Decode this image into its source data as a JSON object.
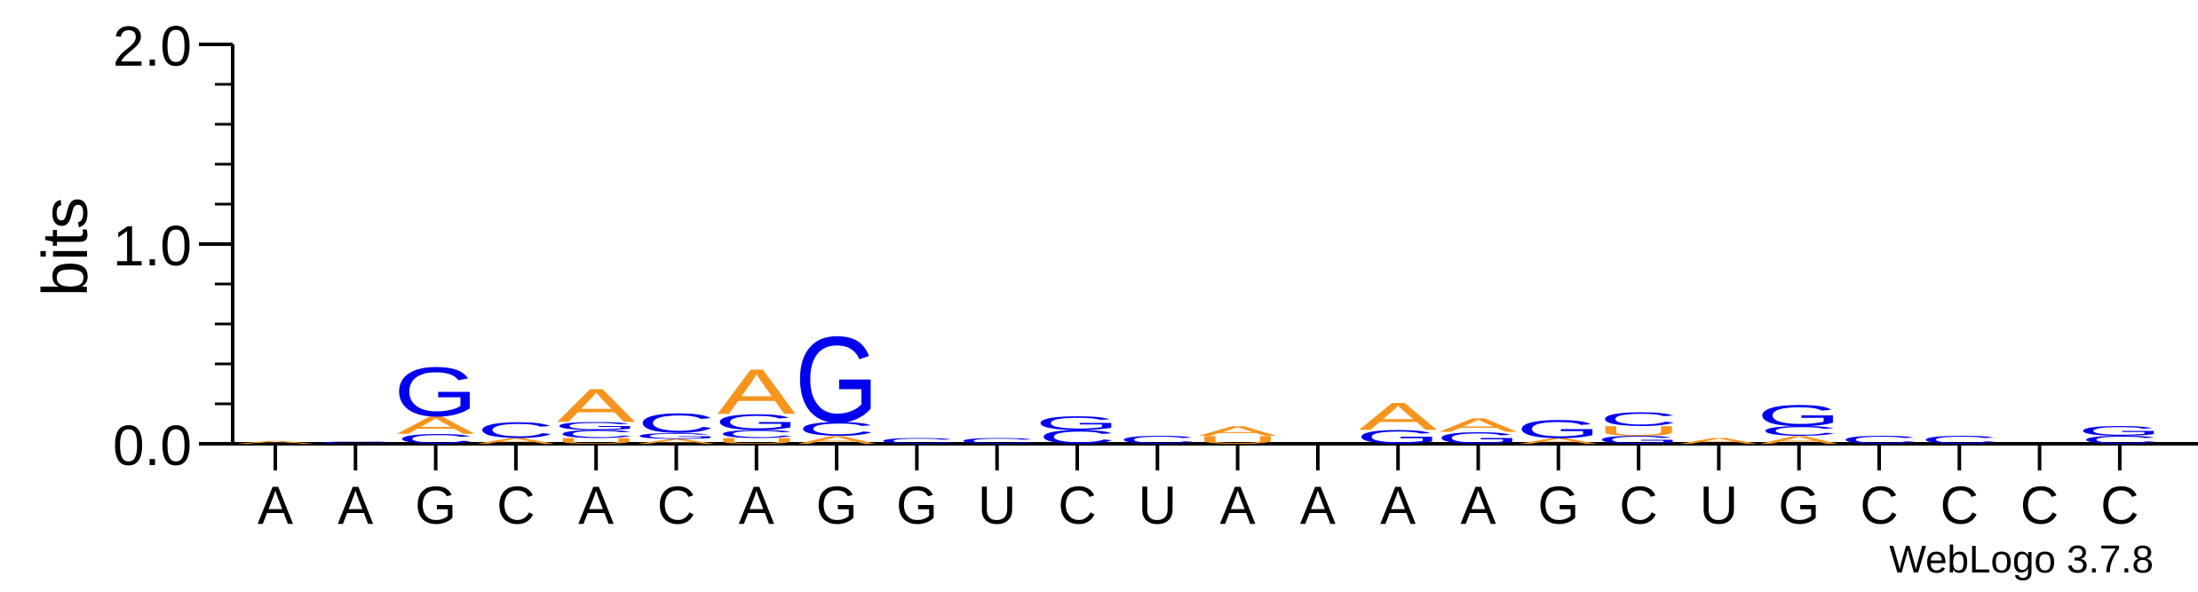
{
  "chart_data": {
    "type": "sequence-logo",
    "ylabel": "bits",
    "ylim": [
      0,
      2
    ],
    "ytick_labels": [
      "0.0",
      "1.0",
      "2.0"
    ],
    "x_labels": [
      "A",
      "A",
      "G",
      "C",
      "A",
      "C",
      "A",
      "G",
      "G",
      "U",
      "C",
      "U",
      "A",
      "A",
      "A",
      "A",
      "G",
      "C",
      "U",
      "G",
      "C",
      "C",
      "C",
      "C"
    ],
    "colors": {
      "A": "#f7941d",
      "G": "#0000ee",
      "C": "#0000ee",
      "U": "#f7941d"
    },
    "positions": [
      [
        [
          "A",
          0.015
        ]
      ],
      [
        [
          "C",
          0.01
        ]
      ],
      [
        [
          "C",
          0.05
        ],
        [
          "A",
          0.09
        ],
        [
          "G",
          0.25
        ]
      ],
      [
        [
          "A",
          0.03
        ],
        [
          "C",
          0.08
        ]
      ],
      [
        [
          "U",
          0.03
        ],
        [
          "C",
          0.04
        ],
        [
          "G",
          0.04
        ],
        [
          "A",
          0.17
        ]
      ],
      [
        [
          "A",
          0.025
        ],
        [
          "G",
          0.03
        ],
        [
          "C",
          0.1
        ]
      ],
      [
        [
          "U",
          0.03
        ],
        [
          "C",
          0.04
        ],
        [
          "G",
          0.08
        ],
        [
          "A",
          0.23
        ]
      ],
      [
        [
          "A",
          0.04
        ],
        [
          "C",
          0.07
        ],
        [
          "G",
          0.44
        ]
      ],
      [
        [
          "C",
          0.03
        ]
      ],
      [
        [
          "C",
          0.03
        ]
      ],
      [
        [
          "C",
          0.07
        ],
        [
          "G",
          0.07
        ]
      ],
      [
        [
          "C",
          0.04
        ]
      ],
      [
        [
          "U",
          0.04
        ],
        [
          "A",
          0.05
        ]
      ],
      [],
      [
        [
          "G",
          0.07
        ],
        [
          "A",
          0.14
        ]
      ],
      [
        [
          "G",
          0.06
        ],
        [
          "A",
          0.07
        ]
      ],
      [
        [
          "A",
          0.03
        ],
        [
          "G",
          0.09
        ]
      ],
      [
        [
          "G",
          0.04
        ],
        [
          "U",
          0.05
        ],
        [
          "C",
          0.07
        ]
      ],
      [
        [
          "A",
          0.03
        ]
      ],
      [
        [
          "A",
          0.04
        ],
        [
          "C",
          0.05
        ],
        [
          "G",
          0.11
        ]
      ],
      [
        [
          "C",
          0.04
        ]
      ],
      [
        [
          "C",
          0.04
        ]
      ],
      [],
      [
        [
          "C",
          0.04
        ],
        [
          "G",
          0.05
        ]
      ]
    ],
    "credit": "WebLogo 3.7.8"
  }
}
